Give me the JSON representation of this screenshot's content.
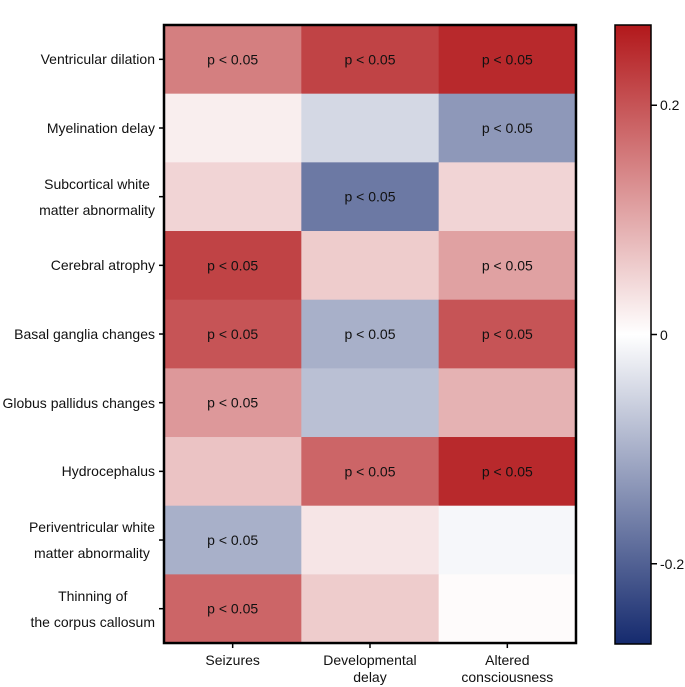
{
  "chart_data": {
    "type": "heatmap",
    "rows": [
      [
        "Ventricular dilation"
      ],
      [
        "Myelination delay"
      ],
      [
        "Subcortical white",
        "matter abnormality"
      ],
      [
        "Cerebral atrophy"
      ],
      [
        "Basal ganglia changes"
      ],
      [
        "Globus pallidus changes"
      ],
      [
        "Hydrocephalus"
      ],
      [
        "Periventricular white",
        "matter abnormality"
      ],
      [
        "Thinning of",
        "the corpus callosum"
      ]
    ],
    "columns": [
      [
        "Seizures"
      ],
      [
        "Developmental",
        "delay"
      ],
      [
        "Altered",
        "consciousness"
      ]
    ],
    "values": [
      [
        0.15,
        0.22,
        0.25
      ],
      [
        0.02,
        -0.05,
        -0.13
      ],
      [
        0.05,
        -0.17,
        0.05
      ],
      [
        0.22,
        0.06,
        0.11
      ],
      [
        0.2,
        -0.1,
        0.2
      ],
      [
        0.12,
        -0.08,
        0.09
      ],
      [
        0.07,
        0.18,
        0.25
      ],
      [
        -0.1,
        0.03,
        -0.01
      ],
      [
        0.18,
        0.06,
        0.005
      ]
    ],
    "annotations": [
      [
        "p < 0.05",
        "p < 0.05",
        "p < 0.05"
      ],
      [
        "",
        "",
        "p < 0.05"
      ],
      [
        "",
        "p < 0.05",
        ""
      ],
      [
        "p < 0.05",
        "",
        "p < 0.05"
      ],
      [
        "p < 0.05",
        "p < 0.05",
        "p < 0.05"
      ],
      [
        "p < 0.05",
        "",
        ""
      ],
      [
        "",
        "p < 0.05",
        "p < 0.05"
      ],
      [
        "p < 0.05",
        "",
        ""
      ],
      [
        "p < 0.05",
        "",
        ""
      ]
    ],
    "colorbar": {
      "range": [
        -0.27,
        0.27
      ],
      "ticks": [
        0.2,
        0,
        -0.2
      ],
      "tick_labels": [
        "0.2",
        "0",
        "-0.2"
      ],
      "colors": {
        "low": "#152a6e",
        "mid": "#ffffff",
        "high": "#b2181b"
      }
    }
  }
}
